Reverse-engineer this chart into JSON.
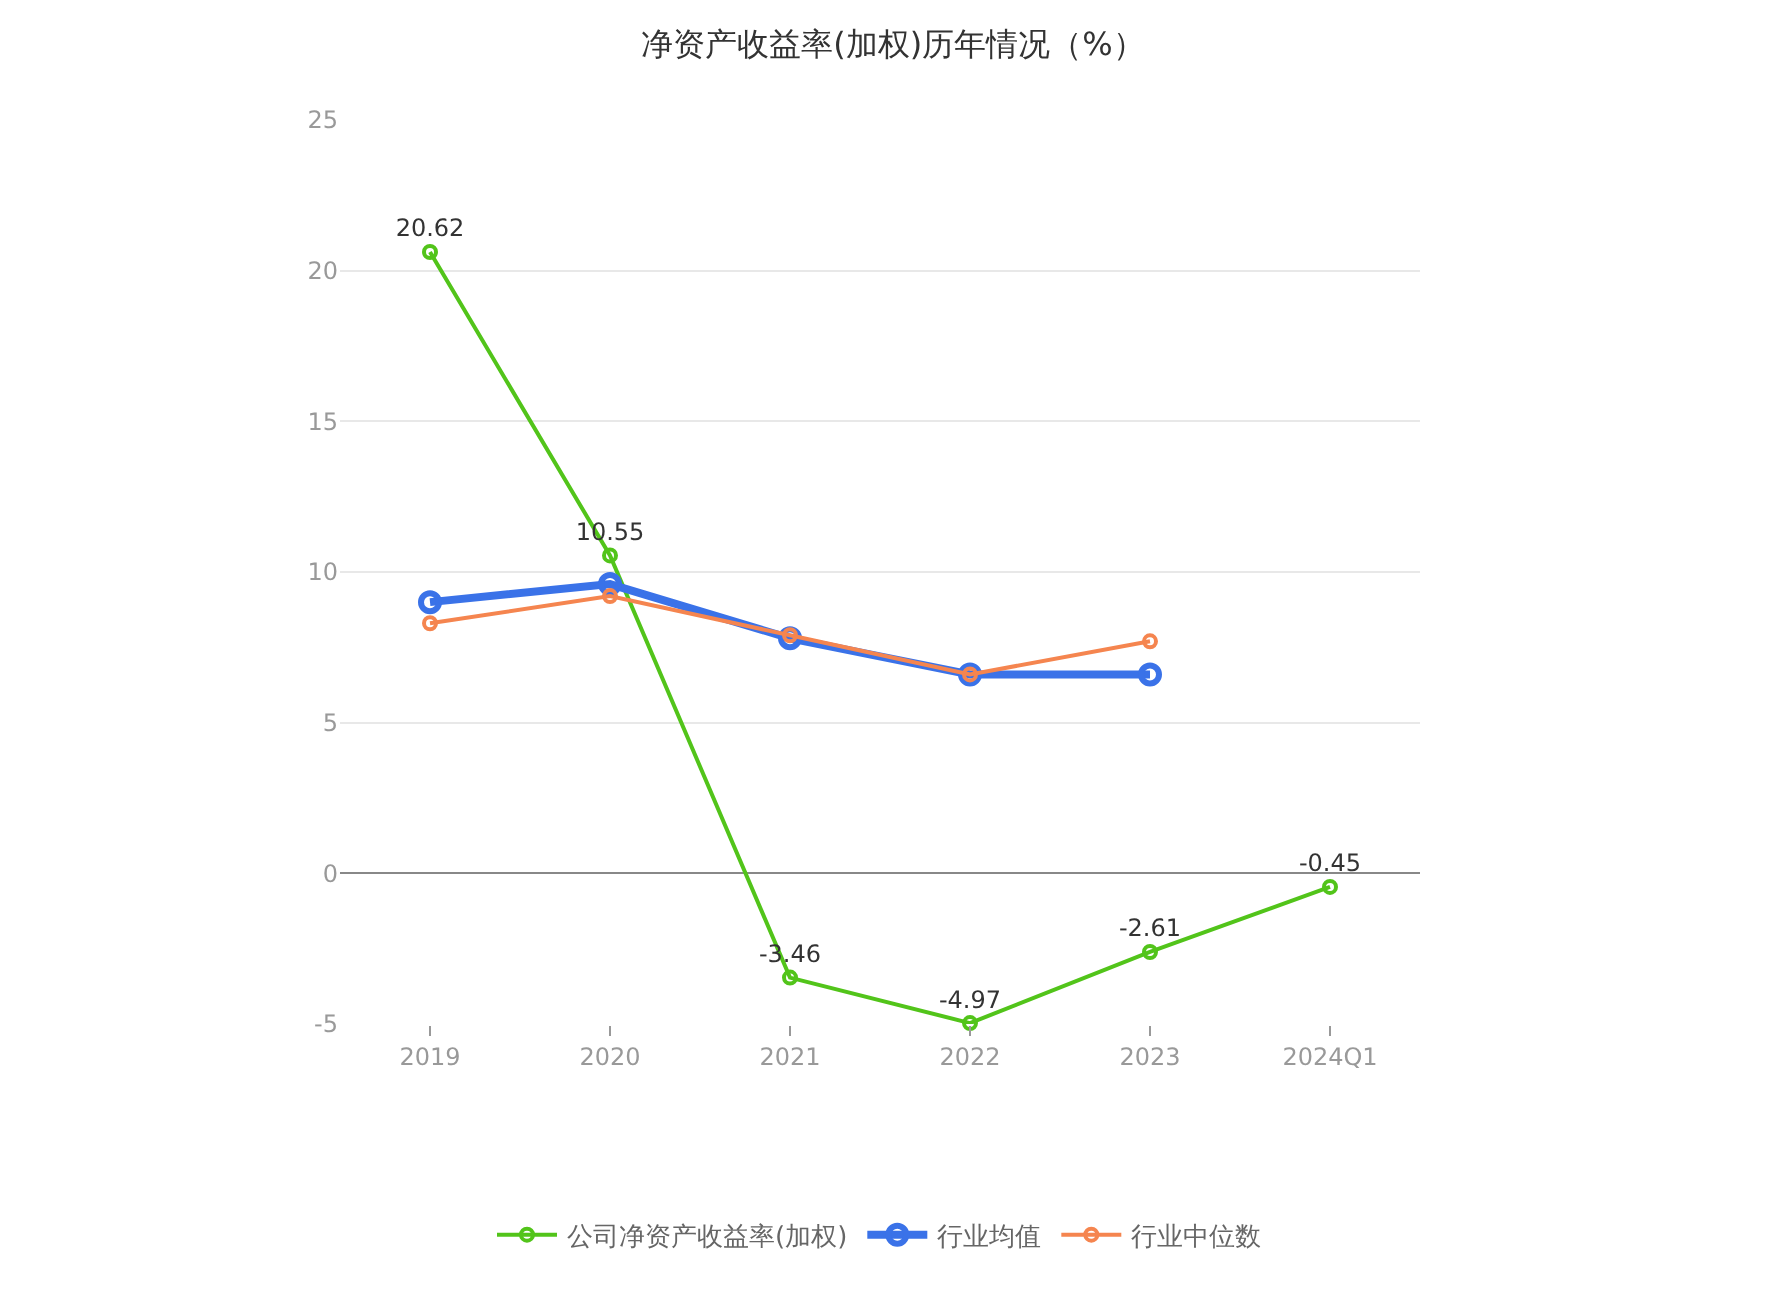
{
  "chart_data": {
    "type": "line",
    "title": "净资产收益率(加权)历年情况（%）",
    "categories": [
      "2019",
      "2020",
      "2021",
      "2022",
      "2023",
      "2024Q1"
    ],
    "series": [
      {
        "name": "公司净资产收益率(加权)",
        "color": "#52c41a",
        "values": [
          20.62,
          10.55,
          -3.46,
          -4.97,
          -2.61,
          -0.45
        ],
        "value_labels": [
          "20.62",
          "10.55",
          "-3.46",
          "-4.97",
          "-2.61",
          "-0.45"
        ]
      },
      {
        "name": "行业均值",
        "color": "#3a72e8",
        "values": [
          9.0,
          9.6,
          7.8,
          6.6,
          6.6,
          null
        ]
      },
      {
        "name": "行业中位数",
        "color": "#f5854f",
        "values": [
          8.3,
          9.2,
          7.9,
          6.6,
          7.7,
          null
        ]
      }
    ],
    "ylim": [
      -5,
      25
    ],
    "yticks": [
      -5,
      0,
      5,
      10,
      15,
      20,
      25
    ],
    "grid": "y",
    "legend": "bottom",
    "marker": "circle",
    "line_style": "solid"
  }
}
